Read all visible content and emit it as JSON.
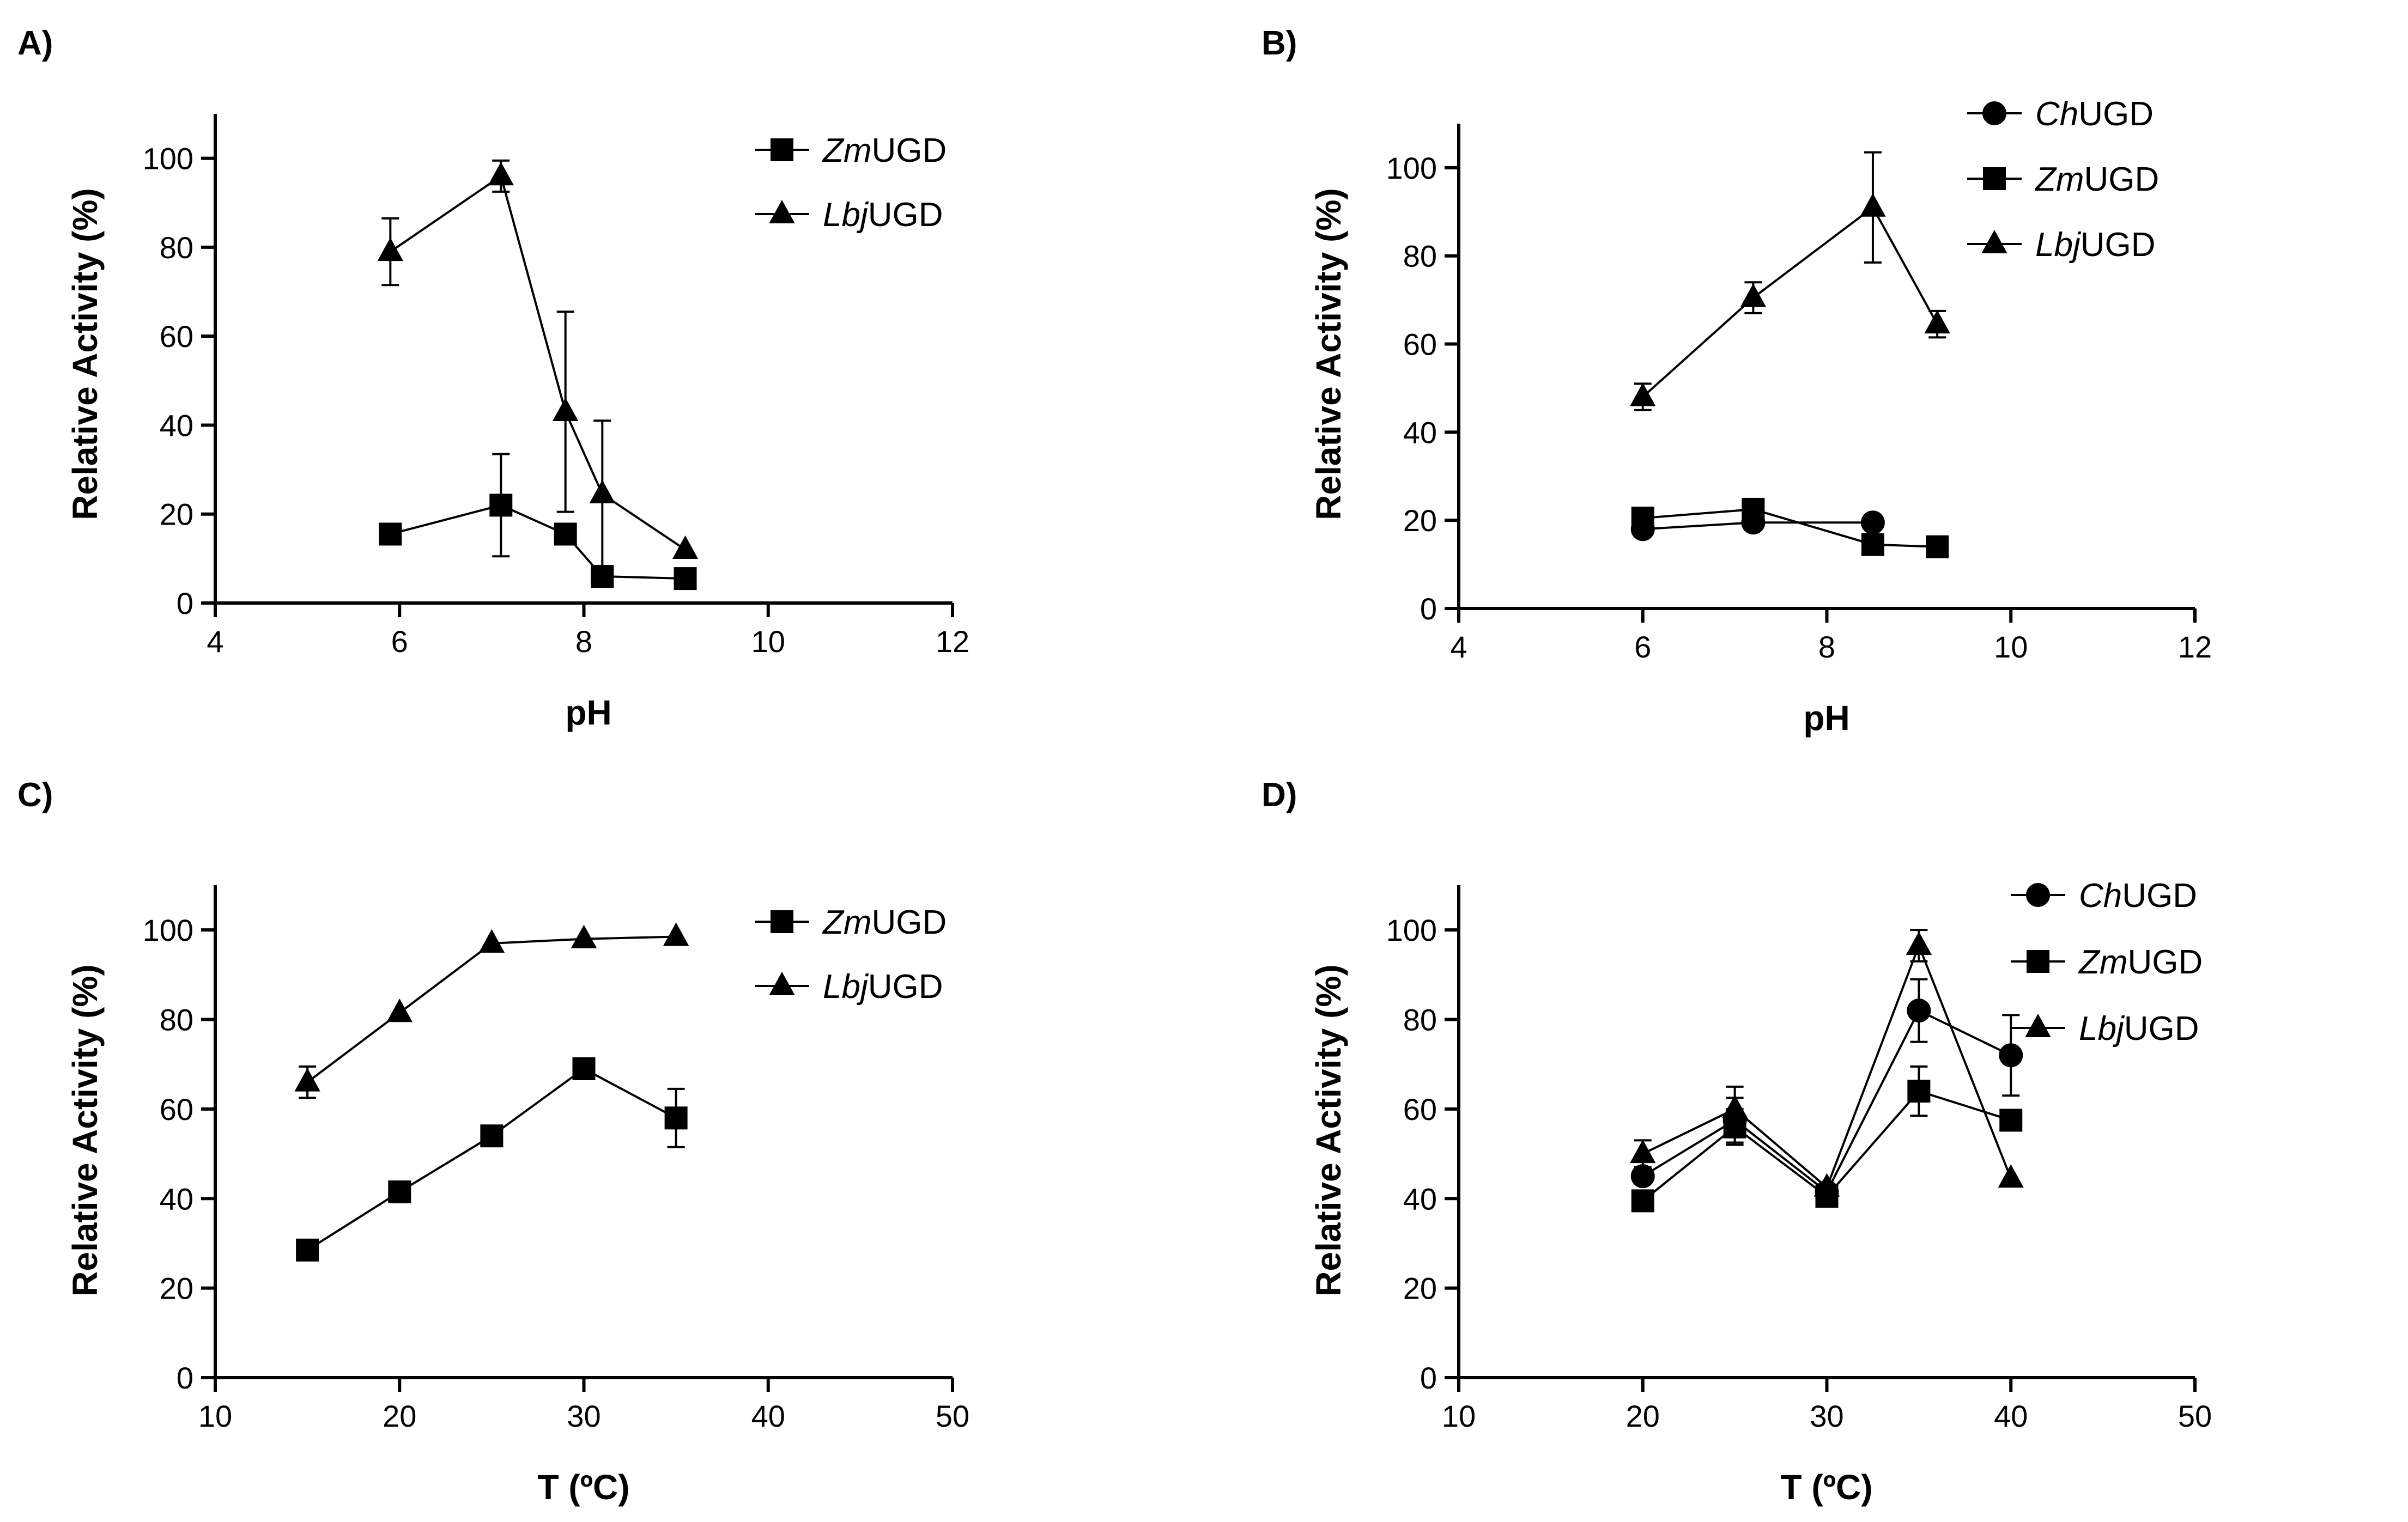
{
  "chart_data": [
    {
      "id": "A",
      "panel_label": "A)",
      "type": "line",
      "xlabel": "pH",
      "ylabel": "Relative Activity  (%)",
      "xlim": [
        4,
        12
      ],
      "ylim": [
        0,
        110
      ],
      "xticks": [
        4,
        6,
        8,
        10,
        12
      ],
      "yticks": [
        0,
        20,
        40,
        60,
        80,
        100
      ],
      "grid": false,
      "legend_position": "top-right",
      "series": [
        {
          "name_italic": "Zm",
          "name_rest": "UGD",
          "marker": "square",
          "points": [
            {
              "x": 5.9,
              "y": 15.5,
              "err": 0
            },
            {
              "x": 7.1,
              "y": 22,
              "err": 11.5
            },
            {
              "x": 7.8,
              "y": 15.5,
              "err": 2
            },
            {
              "x": 8.2,
              "y": 6,
              "err": 0
            },
            {
              "x": 9.1,
              "y": 5.5,
              "err": 0
            }
          ]
        },
        {
          "name_italic": "Lbj",
          "name_rest": "UGD",
          "marker": "triangle",
          "points": [
            {
              "x": 5.9,
              "y": 79,
              "err": 7.5
            },
            {
              "x": 7.1,
              "y": 96,
              "err": 3.5
            },
            {
              "x": 7.8,
              "y": 43,
              "err": 22.5
            },
            {
              "x": 8.2,
              "y": 24.5,
              "err": 16.5
            },
            {
              "x": 9.1,
              "y": 12,
              "err": 0
            }
          ]
        }
      ]
    },
    {
      "id": "B",
      "panel_label": "B)",
      "type": "line",
      "xlabel": "pH",
      "ylabel": "Relative Activity (%)",
      "xlim": [
        4,
        12
      ],
      "ylim": [
        0,
        110
      ],
      "xticks": [
        4,
        6,
        8,
        10,
        12
      ],
      "yticks": [
        0,
        20,
        40,
        60,
        80,
        100
      ],
      "grid": false,
      "legend_position": "top-right",
      "series": [
        {
          "name_italic": "Ch",
          "name_rest": "UGD",
          "marker": "circle",
          "points": [
            {
              "x": 6.0,
              "y": 18,
              "err": 0
            },
            {
              "x": 7.2,
              "y": 19.5,
              "err": 0
            },
            {
              "x": 8.5,
              "y": 19.5,
              "err": 0
            }
          ]
        },
        {
          "name_italic": "Zm",
          "name_rest": "UGD",
          "marker": "square",
          "points": [
            {
              "x": 6.0,
              "y": 20.5,
              "err": 0
            },
            {
              "x": 7.2,
              "y": 22.5,
              "err": 0
            },
            {
              "x": 8.5,
              "y": 14.5,
              "err": 0
            },
            {
              "x": 9.2,
              "y": 14,
              "err": 0
            }
          ]
        },
        {
          "name_italic": "Lbj",
          "name_rest": "UGD",
          "marker": "triangle",
          "points": [
            {
              "x": 6.0,
              "y": 48,
              "err": 3
            },
            {
              "x": 7.2,
              "y": 70.5,
              "err": 3.5
            },
            {
              "x": 8.5,
              "y": 91,
              "err": 12.5
            },
            {
              "x": 9.2,
              "y": 64.5,
              "err": 3
            }
          ]
        }
      ]
    },
    {
      "id": "C",
      "panel_label": "C)",
      "type": "line",
      "xlabel": "T (ºC)",
      "ylabel": "Relative Activity (%)",
      "xlim": [
        10,
        50
      ],
      "ylim": [
        0,
        110
      ],
      "xticks": [
        10,
        20,
        30,
        40,
        50
      ],
      "yticks": [
        0,
        20,
        40,
        60,
        80,
        100
      ],
      "grid": false,
      "legend_position": "top-right",
      "series": [
        {
          "name_italic": "Zm",
          "name_rest": "UGD",
          "marker": "square",
          "points": [
            {
              "x": 15,
              "y": 28.5,
              "err": 0
            },
            {
              "x": 20,
              "y": 41.5,
              "err": 0
            },
            {
              "x": 25,
              "y": 54,
              "err": 0
            },
            {
              "x": 30,
              "y": 69,
              "err": 0
            },
            {
              "x": 35,
              "y": 58,
              "err": 6.5
            }
          ]
        },
        {
          "name_italic": "Lbj",
          "name_rest": "UGD",
          "marker": "triangle",
          "points": [
            {
              "x": 15,
              "y": 66,
              "err": 3.5
            },
            {
              "x": 20,
              "y": 81.5,
              "err": 0
            },
            {
              "x": 25,
              "y": 97,
              "err": 0
            },
            {
              "x": 30,
              "y": 98,
              "err": 0
            },
            {
              "x": 35,
              "y": 98.5,
              "err": 0
            }
          ]
        }
      ]
    },
    {
      "id": "D",
      "panel_label": "D)",
      "type": "line",
      "xlabel": "T (ºC)",
      "ylabel": "Relative Activity (%)",
      "xlim": [
        10,
        50
      ],
      "ylim": [
        0,
        110
      ],
      "xticks": [
        10,
        20,
        30,
        40,
        50
      ],
      "yticks": [
        0,
        20,
        40,
        60,
        80,
        100
      ],
      "grid": false,
      "legend_position": "top-right",
      "series": [
        {
          "name_italic": "Ch",
          "name_rest": "UGD",
          "marker": "circle",
          "points": [
            {
              "x": 20,
              "y": 45,
              "err": 0
            },
            {
              "x": 25,
              "y": 57.5,
              "err": 5
            },
            {
              "x": 30,
              "y": 41.5,
              "err": 0
            },
            {
              "x": 35,
              "y": 82,
              "err": 7
            },
            {
              "x": 40,
              "y": 72,
              "err": 9
            }
          ]
        },
        {
          "name_italic": "Zm",
          "name_rest": "UGD",
          "marker": "square",
          "points": [
            {
              "x": 20,
              "y": 39.5,
              "err": 0
            },
            {
              "x": 25,
              "y": 56,
              "err": 4
            },
            {
              "x": 30,
              "y": 40.5,
              "err": 0
            },
            {
              "x": 35,
              "y": 64,
              "err": 5.5
            },
            {
              "x": 40,
              "y": 57.5,
              "err": 0
            }
          ]
        },
        {
          "name_italic": "Lbj",
          "name_rest": "UGD",
          "marker": "triangle",
          "points": [
            {
              "x": 20,
              "y": 50,
              "err": 3
            },
            {
              "x": 25,
              "y": 60,
              "err": 5
            },
            {
              "x": 30,
              "y": 42.5,
              "err": 0
            },
            {
              "x": 35,
              "y": 96.5,
              "err": 3.5
            },
            {
              "x": 40,
              "y": 44.5,
              "err": 0
            }
          ]
        }
      ]
    }
  ]
}
